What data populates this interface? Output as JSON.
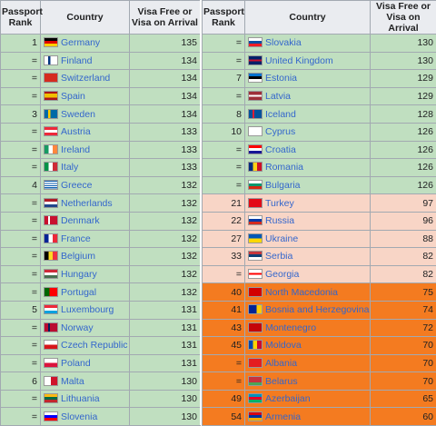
{
  "headers": {
    "rank": "Passport Rank",
    "country": "Country",
    "visa": "Visa Free or Visa on Arrival"
  },
  "left": [
    {
      "rank": "1",
      "country": "Germany",
      "visa": "135",
      "tier": "green",
      "flag": "linear-gradient(#000 33%,#dd0000 33% 66%,#ffce00 66%)"
    },
    {
      "rank": "=",
      "country": "Finland",
      "visa": "134",
      "tier": "green",
      "flag": "linear-gradient(90deg,#fff 30%,#003580 30% 45%,#fff 45%)"
    },
    {
      "rank": "=",
      "country": "Switzerland",
      "visa": "134",
      "tier": "green",
      "flag": "#d52b1e"
    },
    {
      "rank": "=",
      "country": "Spain",
      "visa": "134",
      "tier": "green",
      "flag": "linear-gradient(#aa151b 25%,#f1bf00 25% 75%,#aa151b 75%)"
    },
    {
      "rank": "3",
      "country": "Sweden",
      "visa": "134",
      "tier": "green",
      "flag": "linear-gradient(90deg,#006aa7 30%,#fecc00 30% 45%,#006aa7 45%)"
    },
    {
      "rank": "=",
      "country": "Austria",
      "visa": "133",
      "tier": "green",
      "flag": "linear-gradient(#ed2939 33%,#fff 33% 66%,#ed2939 66%)"
    },
    {
      "rank": "=",
      "country": "Ireland",
      "visa": "133",
      "tier": "green",
      "flag": "linear-gradient(90deg,#169b62 33%,#fff 33% 66%,#ff883e 66%)"
    },
    {
      "rank": "=",
      "country": "Italy",
      "visa": "133",
      "tier": "green",
      "flag": "linear-gradient(90deg,#009246 33%,#fff 33% 66%,#ce2b37 66%)"
    },
    {
      "rank": "4",
      "country": "Greece",
      "visa": "132",
      "tier": "green",
      "flag": "repeating-linear-gradient(#0d5eaf 0 1.2px,#fff 1.2px 2.4px)"
    },
    {
      "rank": "=",
      "country": "Netherlands",
      "visa": "132",
      "tier": "green",
      "flag": "linear-gradient(#ae1c28 33%,#fff 33% 66%,#21468b 66%)"
    },
    {
      "rank": "=",
      "country": "Denmark",
      "visa": "132",
      "tier": "green",
      "flag": "linear-gradient(90deg,#c8102e 30%,#fff 30% 42%,#c8102e 42%)"
    },
    {
      "rank": "=",
      "country": "France",
      "visa": "132",
      "tier": "green",
      "flag": "linear-gradient(90deg,#002395 33%,#fff 33% 66%,#ed2939 66%)"
    },
    {
      "rank": "=",
      "country": "Belgium",
      "visa": "132",
      "tier": "green",
      "flag": "linear-gradient(90deg,#000 33%,#fdda24 33% 66%,#ef3340 66%)"
    },
    {
      "rank": "=",
      "country": "Hungary",
      "visa": "132",
      "tier": "green",
      "flag": "linear-gradient(#ce2939 33%,#fff 33% 66%,#477050 66%)"
    },
    {
      "rank": "=",
      "country": "Portugal",
      "visa": "132",
      "tier": "green",
      "flag": "linear-gradient(90deg,#006600 40%,#ff0000 40%)"
    },
    {
      "rank": "5",
      "country": "Luxembourg",
      "visa": "131",
      "tier": "green",
      "flag": "linear-gradient(#ed2939 33%,#fff 33% 66%,#00a1de 66%)"
    },
    {
      "rank": "=",
      "country": "Norway",
      "visa": "131",
      "tier": "green",
      "flag": "linear-gradient(90deg,#ba0c2f 28%,#00205b 28% 44%,#ba0c2f 44%)"
    },
    {
      "rank": "=",
      "country": "Czech Republic",
      "visa": "131",
      "tier": "green",
      "flag": "linear-gradient(#fff 50%,#d7141a 50%)"
    },
    {
      "rank": "=",
      "country": "Poland",
      "visa": "131",
      "tier": "green",
      "flag": "linear-gradient(#fff 50%,#dc143c 50%)"
    },
    {
      "rank": "6",
      "country": "Malta",
      "visa": "130",
      "tier": "green",
      "flag": "linear-gradient(90deg,#fff 50%,#cf142b 50%)"
    },
    {
      "rank": "=",
      "country": "Lithuania",
      "visa": "130",
      "tier": "green",
      "flag": "linear-gradient(#fdb913 33%,#006a44 33% 66%,#c1272d 66%)"
    },
    {
      "rank": "=",
      "country": "Slovenia",
      "visa": "130",
      "tier": "green",
      "flag": "linear-gradient(#fff 33%,#0000ff 33% 66%,#ff0000 66%)"
    }
  ],
  "right": [
    {
      "rank": "=",
      "country": "Slovakia",
      "visa": "130",
      "tier": "green",
      "flag": "linear-gradient(#fff 33%,#0b4ea2 33% 66%,#ee1c25 66%)"
    },
    {
      "rank": "=",
      "country": "United Kingdom",
      "visa": "130",
      "tier": "green",
      "flag": "linear-gradient(#012169 40%,#c8102e 40% 60%,#012169 60%)"
    },
    {
      "rank": "7",
      "country": "Estonia",
      "visa": "129",
      "tier": "green",
      "flag": "linear-gradient(#0072ce 33%,#000 33% 66%,#fff 66%)"
    },
    {
      "rank": "=",
      "country": "Latvia",
      "visa": "129",
      "tier": "green",
      "flag": "linear-gradient(#9e3039 40%,#fff 40% 60%,#9e3039 60%)"
    },
    {
      "rank": "8",
      "country": "Iceland",
      "visa": "128",
      "tier": "green",
      "flag": "linear-gradient(90deg,#02529c 28%,#dc1e35 28% 44%,#02529c 44%)"
    },
    {
      "rank": "10",
      "country": "Cyprus",
      "visa": "126",
      "tier": "green",
      "flag": "#ffffff"
    },
    {
      "rank": "=",
      "country": "Croatia",
      "visa": "126",
      "tier": "green",
      "flag": "linear-gradient(#ff0000 33%,#fff 33% 66%,#171796 66%)"
    },
    {
      "rank": "=",
      "country": "Romania",
      "visa": "126",
      "tier": "green",
      "flag": "linear-gradient(90deg,#002b7f 33%,#fcd116 33% 66%,#ce1126 66%)"
    },
    {
      "rank": "=",
      "country": "Bulgaria",
      "visa": "126",
      "tier": "green",
      "flag": "linear-gradient(#fff 33%,#00966e 33% 66%,#d62612 66%)"
    },
    {
      "rank": "21",
      "country": "Turkey",
      "visa": "97",
      "tier": "pink",
      "flag": "#e30a17"
    },
    {
      "rank": "22",
      "country": "Russia",
      "visa": "96",
      "tier": "pink",
      "flag": "linear-gradient(#fff 33%,#0039a6 33% 66%,#d52b1e 66%)"
    },
    {
      "rank": "27",
      "country": "Ukraine",
      "visa": "88",
      "tier": "pink",
      "flag": "linear-gradient(#0057b7 50%,#ffd700 50%)"
    },
    {
      "rank": "33",
      "country": "Serbia",
      "visa": "82",
      "tier": "pink",
      "flag": "linear-gradient(#c6363c 33%,#0c4076 33% 66%,#fff 66%)"
    },
    {
      "rank": "=",
      "country": "Georgia",
      "visa": "82",
      "tier": "pink",
      "flag": "linear-gradient(#fff 40%,#ff0000 40% 60%,#fff 60%)"
    },
    {
      "rank": "40",
      "country": "North Macedonia",
      "visa": "75",
      "tier": "orange",
      "flag": "#d20000"
    },
    {
      "rank": "41",
      "country": "Bosnia and Herzegovina",
      "visa": "74",
      "tier": "orange",
      "flag": "linear-gradient(90deg,#002395 60%,#fecb00 60%)"
    },
    {
      "rank": "43",
      "country": "Montenegro",
      "visa": "72",
      "tier": "orange",
      "flag": "#c40308"
    },
    {
      "rank": "45",
      "country": "Moldova",
      "visa": "70",
      "tier": "orange",
      "flag": "linear-gradient(90deg,#0046ae 33%,#ffd200 33% 66%,#cc092f 66%)"
    },
    {
      "rank": "=",
      "country": "Albania",
      "visa": "70",
      "tier": "orange",
      "flag": "#e41e20"
    },
    {
      "rank": "=",
      "country": "Belarus",
      "visa": "70",
      "tier": "orange",
      "flag": "linear-gradient(#c8313e 66%,#4aa657 66%)"
    },
    {
      "rank": "49",
      "country": "Azerbaijan",
      "visa": "65",
      "tier": "orange",
      "flag": "linear-gradient(#0092bc 33%,#e4002b 33% 66%,#00af66 66%)"
    },
    {
      "rank": "54",
      "country": "Armenia",
      "visa": "60",
      "tier": "orange",
      "flag": "linear-gradient(#d90012 33%,#0033a0 33% 66%,#f2a800 66%)"
    }
  ]
}
